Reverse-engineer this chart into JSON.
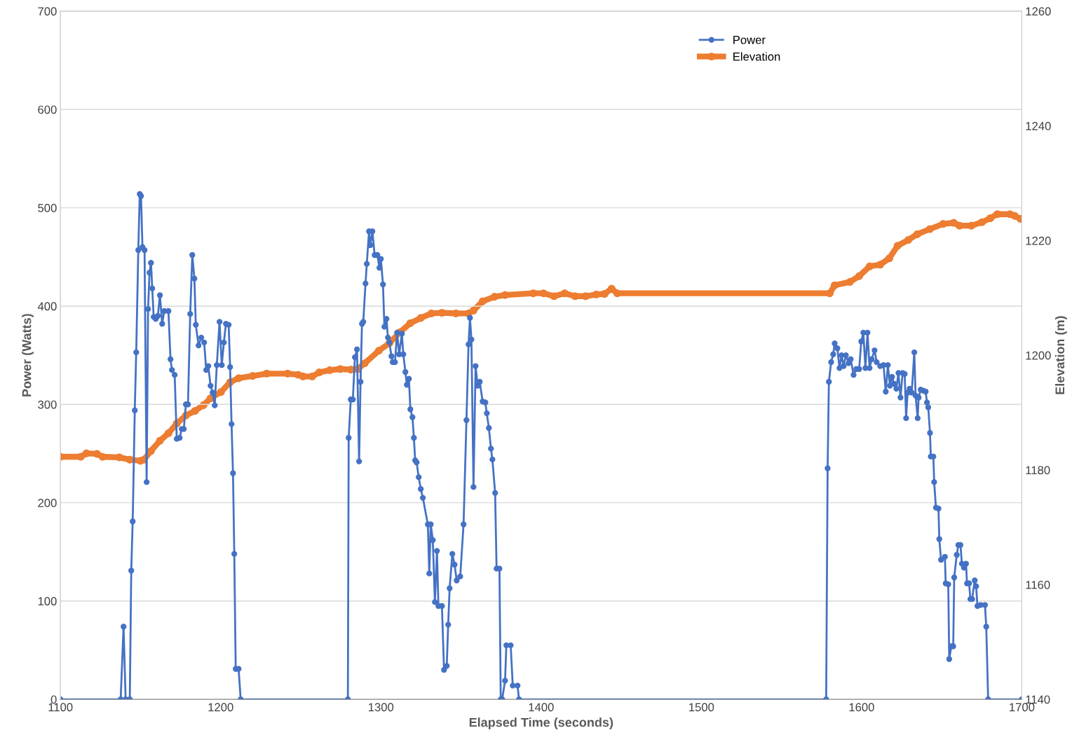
{
  "chart_data": {
    "type": "line",
    "xlabel": "Elapsed Time (seconds)",
    "ylabel": "Power (Watts)",
    "y2label": "Elevation (m)",
    "xlim": [
      1100,
      1700
    ],
    "xticks": [
      1100,
      1200,
      1300,
      1400,
      1500,
      1600,
      1700
    ],
    "ylim": [
      0,
      700
    ],
    "yticks": [
      0,
      100,
      200,
      300,
      400,
      500,
      600,
      700
    ],
    "y2lim": [
      1140,
      1260
    ],
    "y2ticks": [
      1140,
      1160,
      1180,
      1200,
      1220,
      1240,
      1260
    ],
    "grid": "y",
    "legend": "top right",
    "marker": "circle",
    "line_style": "solid",
    "series": [
      {
        "name": "Power",
        "color": "#4472c4",
        "x": [
          1100,
          1137.6,
          1139.4,
          1140.7,
          1143.3,
          1144.2,
          1145.1,
          1146.4,
          1147.3,
          1148.6,
          1149.5,
          1150.3,
          1151.2,
          1152.5,
          1153.8,
          1154.7,
          1155.6,
          1156.5,
          1157.3,
          1158.2,
          1159.5,
          1160.8,
          1162.1,
          1163.5,
          1164.8,
          1167.4,
          1168.7,
          1169.6,
          1171.3,
          1172.6,
          1174.4,
          1175.7,
          1177,
          1178.3,
          1179.6,
          1181,
          1182.3,
          1183.6,
          1184.5,
          1186.2,
          1187.9,
          1189.7,
          1191,
          1192.3,
          1193.7,
          1195,
          1196.3,
          1197.6,
          1199.3,
          1200.7,
          1202,
          1203.3,
          1205,
          1205.9,
          1206.8,
          1207.7,
          1208.5,
          1209.4,
          1211.2,
          1212.5,
          1279.4,
          1279.9,
          1281.2,
          1282.5,
          1283.8,
          1285.1,
          1286.4,
          1287.3,
          1288.2,
          1289,
          1290.4,
          1291.2,
          1292.6,
          1293.4,
          1294.7,
          1296.1,
          1297.8,
          1299.1,
          1300,
          1301.3,
          1302.2,
          1303.5,
          1304.4,
          1305.3,
          1306.6,
          1307.4,
          1308.8,
          1310.1,
          1311.4,
          1313.1,
          1314,
          1315.3,
          1316.2,
          1317.5,
          1318.4,
          1319.7,
          1320.6,
          1321.4,
          1322.3,
          1323.6,
          1324.9,
          1326.2,
          1329.3,
          1330.2,
          1331.1,
          1332.4,
          1333.7,
          1335,
          1335.9,
          1338.1,
          1339.4,
          1341.1,
          1342,
          1342.9,
          1344.6,
          1346,
          1347.3,
          1349.5,
          1351.6,
          1353.4,
          1354.7,
          1355.6,
          1356.5,
          1357.8,
          1359.1,
          1360.4,
          1361.7,
          1363.5,
          1365.2,
          1366.1,
          1367.4,
          1368.7,
          1369.6,
          1371.3,
          1372.2,
          1374,
          1374.8,
          1375.7,
          1377.5,
          1378.3,
          1381,
          1382.3,
          1385.3,
          1386.2,
          1577.9,
          1578.8,
          1579.6,
          1581,
          1582.3,
          1583.2,
          1584.9,
          1586.2,
          1587.5,
          1588.8,
          1590.2,
          1591.9,
          1593.2,
          1595,
          1596.7,
          1598.5,
          1599.8,
          1601.1,
          1602.4,
          1603.7,
          1605,
          1606.3,
          1608.1,
          1609.4,
          1611.6,
          1613.7,
          1615.1,
          1616.4,
          1617.7,
          1619,
          1620.3,
          1621.7,
          1623,
          1624.3,
          1625.6,
          1626.9,
          1627.8,
          1628.7,
          1630,
          1631.3,
          1632.9,
          1633.7,
          1635,
          1635.6,
          1636.9,
          1638.5,
          1640,
          1640.8,
          1641.6,
          1642.7,
          1643.2,
          1644.8,
          1645.3,
          1646.4,
          1648,
          1648.5,
          1649.6,
          1652,
          1652.5,
          1654.1,
          1654.7,
          1656,
          1657.2,
          1657.8,
          1659.4,
          1660.4,
          1661.7,
          1662.6,
          1663.9,
          1665.2,
          1665.8,
          1667.1,
          1667.9,
          1669,
          1670.6,
          1671.5,
          1672.3,
          1674.3,
          1677,
          1677.8,
          1679,
          1700
        ],
        "values": [
          0,
          0,
          74,
          0,
          0,
          131,
          181,
          294,
          353,
          457,
          514,
          512,
          460,
          457,
          221,
          397,
          434,
          444,
          418,
          389,
          387,
          390,
          411,
          382,
          395,
          395,
          346,
          335,
          330,
          265,
          266,
          275,
          275,
          300,
          300,
          392,
          452,
          428,
          381,
          360,
          368,
          363,
          335,
          339,
          319,
          312,
          299,
          340,
          384,
          340,
          363,
          382,
          381,
          338,
          280,
          230,
          148,
          31,
          31,
          0,
          0,
          266,
          305,
          305,
          348,
          356,
          242,
          323,
          382,
          384,
          423,
          443,
          476,
          462,
          476,
          452,
          452,
          439,
          448,
          422,
          379,
          387,
          368,
          363,
          349,
          343,
          343,
          373,
          351,
          372,
          351,
          333,
          320,
          326,
          295,
          287,
          266,
          243,
          241,
          226,
          214,
          205,
          178,
          128,
          178,
          162,
          99,
          151,
          95,
          95,
          30,
          34,
          76,
          113,
          148,
          137,
          121,
          125,
          178,
          284,
          361,
          388,
          366,
          216,
          339,
          319,
          323,
          303,
          302,
          291,
          276,
          255,
          244,
          210,
          133,
          133,
          0,
          0,
          19,
          55,
          55,
          14,
          14,
          0,
          0,
          235,
          323,
          343,
          351,
          362,
          357,
          337,
          350,
          339,
          350,
          342,
          346,
          330,
          336,
          336,
          364,
          373,
          337,
          373,
          337,
          346,
          355,
          343,
          339,
          340,
          313,
          340,
          319,
          328,
          321,
          316,
          332,
          307,
          332,
          331,
          286,
          312,
          316,
          312,
          353,
          309,
          286,
          307,
          315,
          314,
          313,
          302,
          297,
          271,
          247,
          247,
          221,
          195,
          194,
          163,
          142,
          145,
          118,
          117,
          41,
          54,
          54,
          124,
          147,
          157,
          157,
          138,
          134,
          138,
          118,
          118,
          102,
          102,
          121,
          115,
          95,
          96,
          96,
          74,
          0,
          0
        ]
      },
      {
        "name": "Elevation",
        "color": "#ed7d31",
        "axis": "y2",
        "x": [
          1100,
          1112.7,
          1116.2,
          1122.8,
          1126.3,
          1136.8,
          1143.3,
          1149.9,
          1152.1,
          1156.5,
          1162.1,
          1167.4,
          1172.6,
          1178.3,
          1184,
          1189.3,
          1193.7,
          1200.2,
          1205.9,
          1211.2,
          1219.9,
          1228.7,
          1241.8,
          1248.4,
          1251.4,
          1257.1,
          1261.5,
          1268.1,
          1274.6,
          1281.2,
          1285.6,
          1289.9,
          1298.7,
          1305.3,
          1311.8,
          1318.4,
          1324.9,
          1331.5,
          1338.1,
          1346.8,
          1354.7,
          1357.8,
          1363.5,
          1370.9,
          1377.5,
          1395,
          1401.5,
          1408.1,
          1414.7,
          1421.2,
          1427.8,
          1434.4,
          1439.6,
          1444,
          1447.5,
          1580.1,
          1583.2,
          1592.8,
          1598.5,
          1605,
          1611.6,
          1617.3,
          1622.5,
          1629.1,
          1634.7,
          1642.6,
          1650.9,
          1657.5,
          1661.1,
          1668.5,
          1675.1,
          1680.3,
          1684.7,
          1692.6,
          1695.6,
          1699.1
        ],
        "values": [
          1182.3,
          1182.3,
          1182.9,
          1182.8,
          1182.3,
          1182.2,
          1181.8,
          1181.6,
          1181.8,
          1183.3,
          1185.1,
          1186.4,
          1188.1,
          1189.5,
          1190.3,
          1191.3,
          1192.5,
          1193.6,
          1195.3,
          1196,
          1196.4,
          1196.8,
          1196.8,
          1196.6,
          1196.3,
          1196.3,
          1197,
          1197.4,
          1197.6,
          1197.5,
          1197.6,
          1198.6,
          1200.8,
          1202.1,
          1204,
          1205.6,
          1206.5,
          1207.3,
          1207.4,
          1207.3,
          1207.3,
          1207.8,
          1209.4,
          1210.2,
          1210.5,
          1210.8,
          1210.8,
          1210.3,
          1210.8,
          1210.3,
          1210.3,
          1210.6,
          1210.7,
          1211.6,
          1210.8,
          1210.8,
          1212.2,
          1212.8,
          1213.8,
          1215.5,
          1215.8,
          1216.9,
          1219.1,
          1220.1,
          1221.1,
          1222,
          1222.9,
          1223.1,
          1222.6,
          1222.6,
          1223.2,
          1223.9,
          1224.6,
          1224.6,
          1224.3,
          1223.8
        ]
      }
    ]
  }
}
